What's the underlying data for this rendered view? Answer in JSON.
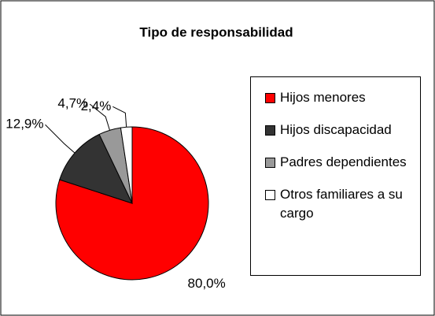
{
  "chart_data": {
    "type": "pie",
    "title": "Tipo de responsabilidad",
    "categories": [
      "Hijos menores",
      "Hijos discapacidad",
      "Padres dependientes",
      "Otros familiares a su cargo"
    ],
    "values": [
      80.0,
      12.9,
      4.7,
      2.4
    ],
    "value_labels": [
      "80,0%",
      "12,9%",
      "4,7%",
      "2,4%"
    ],
    "colors": [
      "#ff0000",
      "#333333",
      "#999999",
      "#ffffff"
    ],
    "legend": "right"
  }
}
